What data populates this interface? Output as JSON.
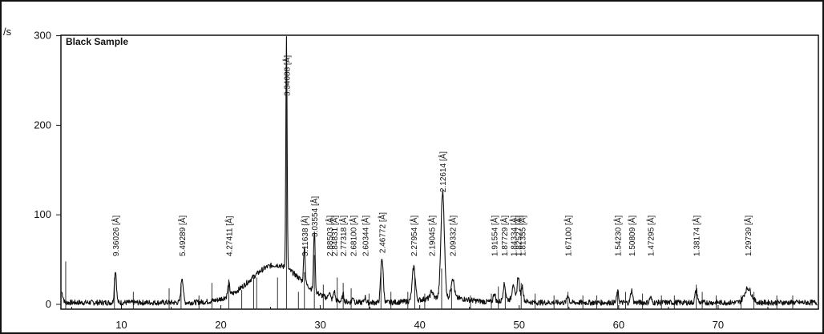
{
  "chart_data": {
    "type": "line",
    "title": "Black Sample",
    "ylabel": "/s",
    "xlabel": "",
    "xlim": [
      4,
      80
    ],
    "ylim": [
      -10,
      305
    ],
    "x_ticks": [
      10,
      20,
      30,
      40,
      50,
      60,
      70
    ],
    "y_ticks": [
      0,
      100,
      200,
      300
    ],
    "grid": false,
    "legend": "none",
    "colors": {
      "line": "#111111",
      "axis": "#111111",
      "stick": "#333333"
    },
    "background": {
      "noise": 6,
      "amorphous_hump": {
        "center": 25.5,
        "width": 3.6,
        "height": 42
      }
    },
    "peaks": [
      {
        "x": 9.4,
        "y": 36,
        "w": 0.14,
        "label": "9.36026 [Å]"
      },
      {
        "x": 16.1,
        "y": 28,
        "w": 0.16,
        "label": "5.49289 [Å]"
      },
      {
        "x": 20.8,
        "y": 14,
        "w": 0.14,
        "label": "4.27411 [Å]"
      },
      {
        "x": 26.6,
        "y": 258,
        "w": 0.09,
        "label": "3.34088 [Å]"
      },
      {
        "x": 28.4,
        "y": 42,
        "w": 0.11,
        "label": "3.11638 [Å]"
      },
      {
        "x": 29.4,
        "y": 68,
        "w": 0.11,
        "label": "3.03554 [Å]"
      },
      {
        "x": 30.9,
        "y": 8,
        "w": 0.12,
        "label": "2.88503 [Å]"
      },
      {
        "x": 31.4,
        "y": 10,
        "w": 0.12,
        "label": "2.84831 [Å]"
      },
      {
        "x": 32.3,
        "y": 8,
        "w": 0.12,
        "label": "2.77318 [Å]"
      },
      {
        "x": 33.3,
        "y": 6,
        "w": 0.12,
        "label": "2.68100 [Å]"
      },
      {
        "x": 34.5,
        "y": 6,
        "w": 0.12,
        "label": "2.60344 [Å]"
      },
      {
        "x": 36.2,
        "y": 50,
        "w": 0.18,
        "label": "2.46772 [Å]"
      },
      {
        "x": 39.4,
        "y": 38,
        "w": 0.22,
        "label": "2.27954 [Å]"
      },
      {
        "x": 41.2,
        "y": 8,
        "w": 0.18,
        "label": "2.19045 [Å]"
      },
      {
        "x": 42.3,
        "y": 118,
        "w": 0.24,
        "label": "2.12614 [Å]"
      },
      {
        "x": 43.3,
        "y": 22,
        "w": 0.22,
        "label": "2.09332 [Å]"
      },
      {
        "x": 47.5,
        "y": 10,
        "w": 0.15,
        "label": "1.91554 [Å]"
      },
      {
        "x": 48.5,
        "y": 18,
        "w": 0.18,
        "label": "1.87729 [Å]"
      },
      {
        "x": 49.4,
        "y": 18,
        "w": 0.15,
        "label": "1.84334 [Å]"
      },
      {
        "x": 49.9,
        "y": 26,
        "w": 0.15,
        "label": "1.82527 [Å]"
      },
      {
        "x": 50.3,
        "y": 16,
        "w": 0.15,
        "label": "1.81355 [Å]"
      },
      {
        "x": 54.9,
        "y": 9,
        "w": 0.14,
        "label": "1.67100 [Å]"
      },
      {
        "x": 59.9,
        "y": 12,
        "w": 0.14,
        "label": "1.54230 [Å]"
      },
      {
        "x": 61.3,
        "y": 14,
        "w": 0.14,
        "label": "1.50809 [Å]"
      },
      {
        "x": 63.2,
        "y": 6,
        "w": 0.14,
        "label": "1.47295 [Å]"
      },
      {
        "x": 67.8,
        "y": 14,
        "w": 0.16,
        "label": "1.38174 [Å]"
      },
      {
        "x": 73.0,
        "y": 16,
        "w": 0.5,
        "label": "1.29739 [Å]"
      }
    ],
    "reference_lines": [
      {
        "x": 4.4,
        "y": 48
      },
      {
        "x": 9.3,
        "y": 30
      },
      {
        "x": 11.2,
        "y": 14
      },
      {
        "x": 14.8,
        "y": 18
      },
      {
        "x": 16.0,
        "y": 22
      },
      {
        "x": 17.8,
        "y": 10
      },
      {
        "x": 19.1,
        "y": 24
      },
      {
        "x": 20.8,
        "y": 28
      },
      {
        "x": 22.1,
        "y": 16
      },
      {
        "x": 23.3,
        "y": 30
      },
      {
        "x": 23.6,
        "y": 30
      },
      {
        "x": 25.7,
        "y": 30
      },
      {
        "x": 26.6,
        "y": 240
      },
      {
        "x": 27.8,
        "y": 14
      },
      {
        "x": 28.4,
        "y": 36
      },
      {
        "x": 29.4,
        "y": 55
      },
      {
        "x": 30.3,
        "y": 22
      },
      {
        "x": 31.7,
        "y": 30
      },
      {
        "x": 32.3,
        "y": 24
      },
      {
        "x": 33.1,
        "y": 18
      },
      {
        "x": 34.9,
        "y": 12
      },
      {
        "x": 36.1,
        "y": 36
      },
      {
        "x": 37.1,
        "y": 14
      },
      {
        "x": 38.8,
        "y": 14
      },
      {
        "x": 39.5,
        "y": 30
      },
      {
        "x": 40.5,
        "y": 12
      },
      {
        "x": 42.2,
        "y": 40
      },
      {
        "x": 43.2,
        "y": 18
      },
      {
        "x": 45.1,
        "y": 10
      },
      {
        "x": 47.2,
        "y": 12
      },
      {
        "x": 47.9,
        "y": 20
      },
      {
        "x": 48.6,
        "y": 14
      },
      {
        "x": 50.2,
        "y": 24
      },
      {
        "x": 51.6,
        "y": 12
      },
      {
        "x": 53.5,
        "y": 10
      },
      {
        "x": 54.9,
        "y": 14
      },
      {
        "x": 56.4,
        "y": 10
      },
      {
        "x": 57.8,
        "y": 10
      },
      {
        "x": 59.9,
        "y": 16
      },
      {
        "x": 60.7,
        "y": 14
      },
      {
        "x": 62.4,
        "y": 12
      },
      {
        "x": 64.3,
        "y": 10
      },
      {
        "x": 65.6,
        "y": 10
      },
      {
        "x": 67.8,
        "y": 22
      },
      {
        "x": 68.4,
        "y": 14
      },
      {
        "x": 69.8,
        "y": 10
      },
      {
        "x": 72.3,
        "y": 10
      },
      {
        "x": 73.6,
        "y": 14
      },
      {
        "x": 75.9,
        "y": 10
      },
      {
        "x": 77.5,
        "y": 10
      }
    ]
  }
}
